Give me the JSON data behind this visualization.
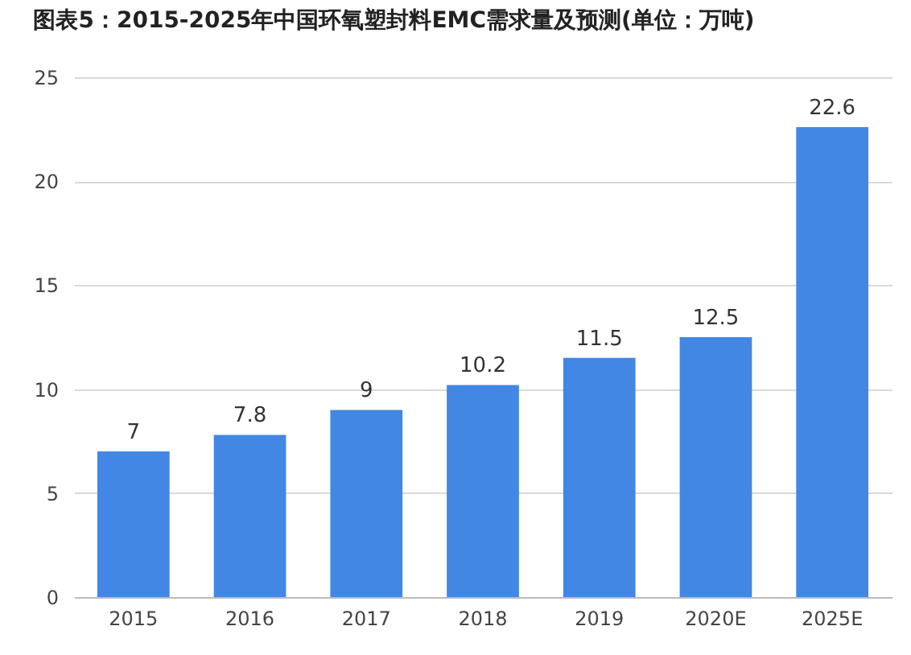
{
  "chart_data": {
    "type": "bar",
    "title": "图表5：2015-2025年中国环氧塑封料EMC需求量及预测(单位：万吨)",
    "categories": [
      "2015",
      "2016",
      "2017",
      "2018",
      "2019",
      "2020E",
      "2025E"
    ],
    "values": [
      7,
      7.8,
      9,
      10.2,
      11.5,
      12.5,
      22.6
    ],
    "color": "#4287e3",
    "ylim": [
      0,
      25
    ],
    "yticks": [
      0,
      5,
      10,
      15,
      20,
      25
    ],
    "grid": "y",
    "data_labels": true
  }
}
